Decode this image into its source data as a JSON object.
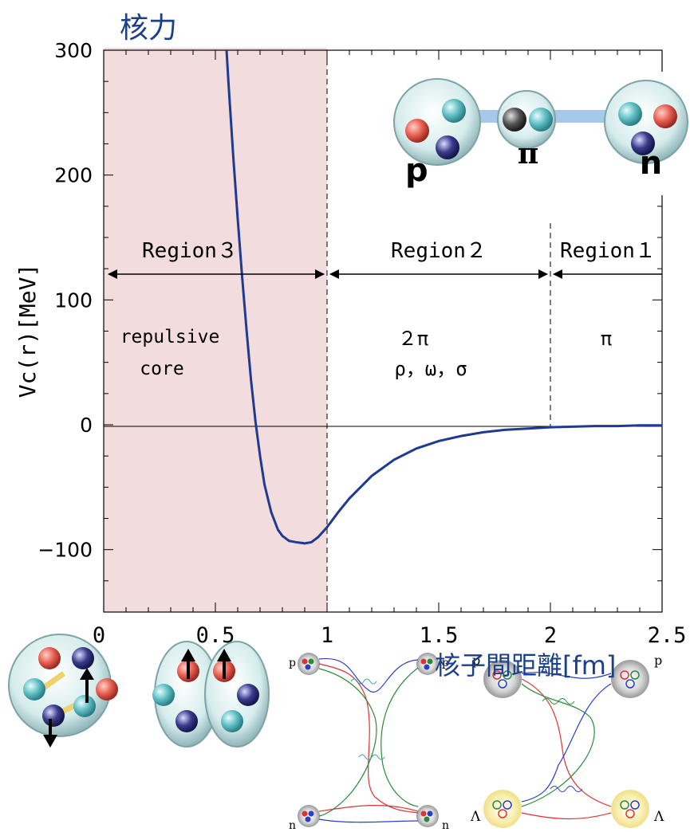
{
  "header": {
    "title": "核力",
    "xlabel": "核子間距離[fm]"
  },
  "chart_data": {
    "type": "line",
    "title": "核力",
    "xlabel": "核子間距離[fm]",
    "ylabel": "Vc(r)[MeV]",
    "xlim": [
      0,
      2.5
    ],
    "ylim": [
      -150,
      300
    ],
    "x_ticks": [
      "0",
      "0.5",
      "1",
      "1.5",
      "2",
      "2.5"
    ],
    "y_ticks": [
      "300",
      "200",
      "100",
      "0",
      "−100"
    ],
    "series": [
      {
        "color": "#1f3a93",
        "x": [
          0.55,
          0.56,
          0.58,
          0.6,
          0.62,
          0.64,
          0.66,
          0.68,
          0.7,
          0.72,
          0.75,
          0.78,
          0.8,
          0.83,
          0.86,
          0.9,
          0.93,
          0.96,
          1.0,
          1.05,
          1.1,
          1.2,
          1.3,
          1.4,
          1.5,
          1.6,
          1.7,
          1.8,
          1.9,
          2.0,
          2.1,
          2.2,
          2.3,
          2.4,
          2.5
        ],
        "y": [
          300,
          270,
          215,
          165,
          118,
          75,
          35,
          2,
          -25,
          -48,
          -70,
          -84,
          -89,
          -93,
          -94,
          -95,
          -94,
          -90,
          -82,
          -70,
          -59,
          -41,
          -28,
          -19,
          -13,
          -9,
          -6,
          -4,
          -3,
          -2,
          -1.5,
          -1,
          -1,
          -0.5,
          -0.5
        ]
      }
    ],
    "regions": [
      {
        "label": "Region３",
        "from": 0,
        "to": 1,
        "note": [
          "repulsive",
          "core"
        ],
        "shaded": true
      },
      {
        "label": "Region２",
        "from": 1,
        "to": 2,
        "note": [
          "２π",
          "ρ，ω，σ"
        ],
        "shaded": false
      },
      {
        "label": "Region１",
        "from": 2,
        "to": 2.5,
        "note": [
          "π"
        ],
        "shaded": false
      }
    ],
    "region_arrow_y": 122,
    "grid": false,
    "colors": {
      "curve": "#1f3a93",
      "shade": "#f2dcdd",
      "axis": "#000000"
    }
  },
  "illustration": {
    "top_labels": [
      "p",
      "π",
      "n"
    ],
    "diagram_left_labels": [
      "p",
      "p",
      "n",
      "n"
    ],
    "diagram_right_labels": [
      "p",
      "p",
      "Λ",
      "Λ"
    ]
  }
}
